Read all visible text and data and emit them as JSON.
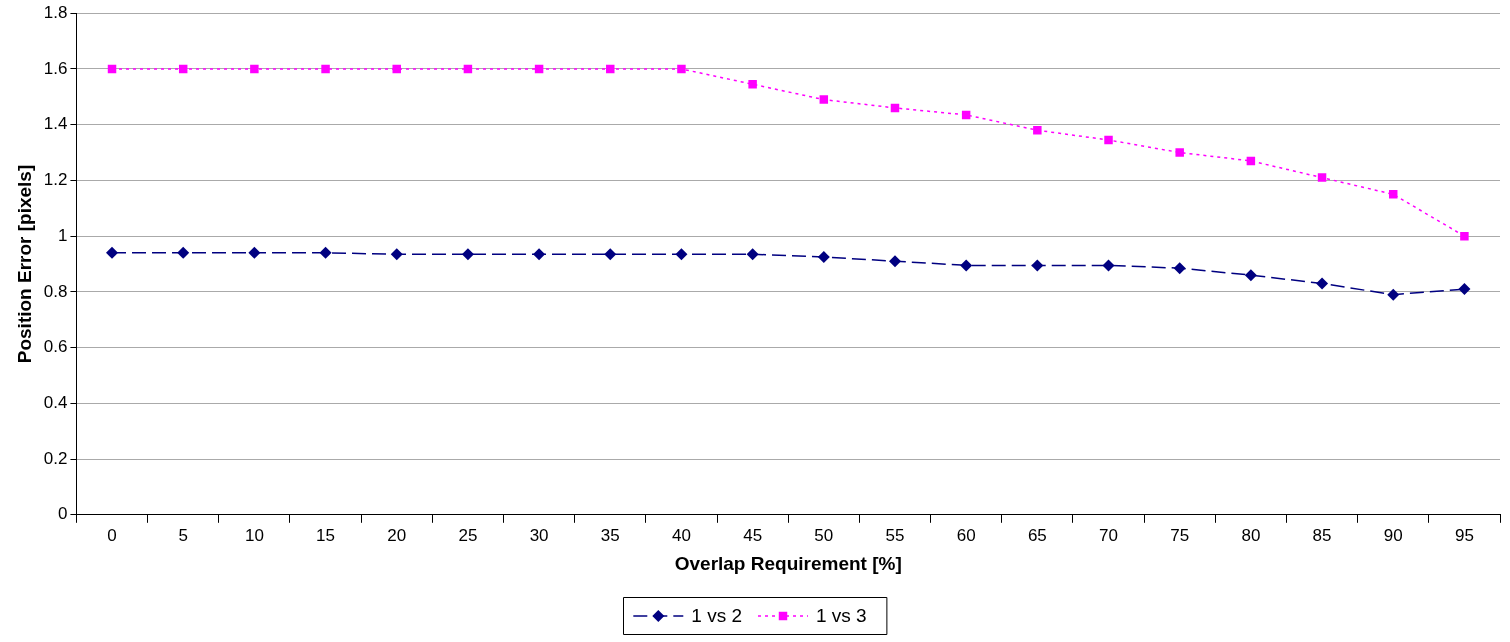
{
  "chart_data": {
    "type": "line",
    "xlabel": "Overlap Requirement [%]",
    "ylabel": "Position Error [pixels]",
    "categories": [
      "0",
      "5",
      "10",
      "15",
      "20",
      "25",
      "30",
      "35",
      "40",
      "45",
      "50",
      "55",
      "60",
      "65",
      "70",
      "75",
      "80",
      "85",
      "90",
      "95"
    ],
    "series": [
      {
        "name": "1 vs 2",
        "color": "#000080",
        "marker": "diamond",
        "line_style": "dashed",
        "values": [
          0.94,
          0.94,
          0.94,
          0.94,
          0.935,
          0.935,
          0.935,
          0.935,
          0.935,
          0.935,
          0.925,
          0.91,
          0.895,
          0.895,
          0.895,
          0.885,
          0.86,
          0.83,
          0.79,
          0.81
        ]
      },
      {
        "name": "1 vs 3",
        "color": "#ff00ff",
        "marker": "square",
        "line_style": "dotted",
        "values": [
          1.6,
          1.6,
          1.6,
          1.6,
          1.6,
          1.6,
          1.6,
          1.6,
          1.6,
          1.545,
          1.49,
          1.46,
          1.435,
          1.38,
          1.345,
          1.3,
          1.27,
          1.21,
          1.15,
          1.0
        ]
      }
    ],
    "ylim": [
      0,
      1.8
    ],
    "yticks": [
      0,
      0.2,
      0.4,
      0.6,
      0.8,
      1,
      1.2,
      1.4,
      1.6,
      1.8
    ],
    "grid": "y",
    "legend": "bottom"
  }
}
